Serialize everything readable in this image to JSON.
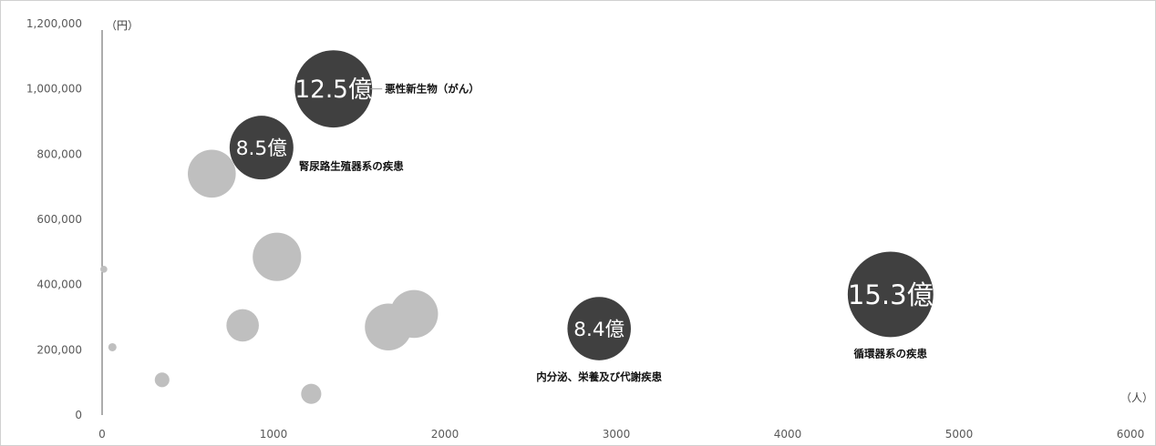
{
  "chart_data": {
    "type": "bubble",
    "x_unit": "（人）",
    "y_unit": "（円）",
    "xlim": [
      0,
      6000
    ],
    "ylim": [
      0,
      1200000
    ],
    "x_ticks": [
      "0",
      "1000",
      "2000",
      "3000",
      "4000",
      "5000",
      "6000"
    ],
    "y_ticks": [
      "0",
      "200,000",
      "400,000",
      "600,000",
      "800,000",
      "1,000,000",
      "1,200,000"
    ],
    "grid": false,
    "colors": {
      "highlight": "#404040",
      "other": "#bfbfbf"
    },
    "highlighted": [
      {
        "x": 1350,
        "y": 1000000,
        "size_label": "12.5億",
        "category": "悪性新生物（がん）",
        "weight": 12.5
      },
      {
        "x": 930,
        "y": 820000,
        "size_label": "8.5億",
        "category": "腎尿路生殖器系の疾患",
        "weight": 8.5
      },
      {
        "x": 2900,
        "y": 265000,
        "size_label": "8.4億",
        "category": "内分泌、栄養及び代謝疾患",
        "weight": 8.4
      },
      {
        "x": 4600,
        "y": 370000,
        "size_label": "15.3億",
        "category": "循環器系の疾患",
        "weight": 15.3
      }
    ],
    "others": [
      {
        "x": 640,
        "y": 740000,
        "weight": 4.8
      },
      {
        "x": 1020,
        "y": 485000,
        "weight": 4.9
      },
      {
        "x": 820,
        "y": 275000,
        "weight": 2.2
      },
      {
        "x": 1820,
        "y": 310000,
        "weight": 4.8
      },
      {
        "x": 1670,
        "y": 270000,
        "weight": 4.6
      },
      {
        "x": 1220,
        "y": 65000,
        "weight": 0.85
      },
      {
        "x": 350,
        "y": 108000,
        "weight": 0.45
      },
      {
        "x": 60,
        "y": 208000,
        "weight": 0.14
      },
      {
        "x": 10,
        "y": 447000,
        "weight": 0.1
      }
    ]
  }
}
